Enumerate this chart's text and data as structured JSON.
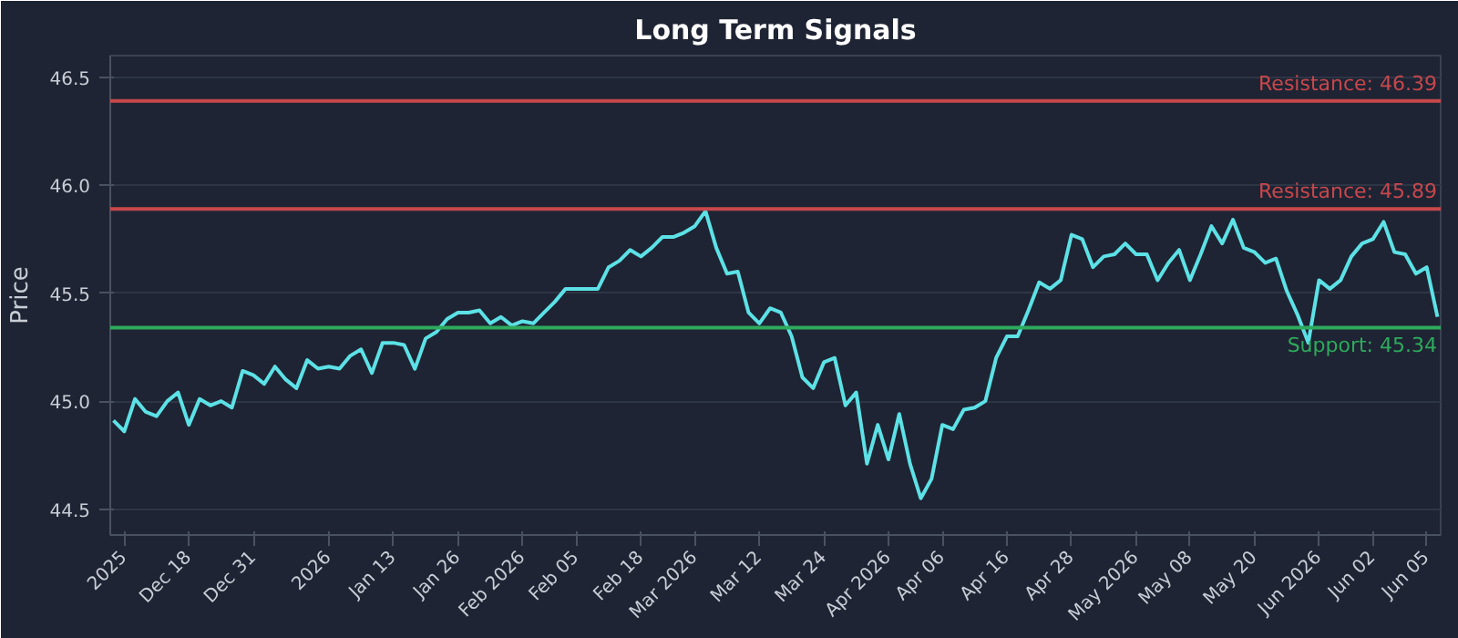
{
  "chart_data": {
    "type": "line",
    "title": "Long Term Signals",
    "ylabel": "Price",
    "categories": [
      null,
      "2025",
      null,
      null,
      null,
      null,
      null,
      "Dec 18",
      null,
      null,
      null,
      null,
      null,
      "Dec 31",
      null,
      null,
      null,
      null,
      null,
      null,
      "2026",
      null,
      null,
      null,
      null,
      null,
      "Jan 13",
      null,
      null,
      null,
      null,
      null,
      "Jan 26",
      null,
      null,
      null,
      null,
      null,
      "Feb 2026",
      null,
      null,
      null,
      null,
      "Feb 05",
      null,
      null,
      null,
      null,
      null,
      "Feb 18",
      null,
      null,
      null,
      null,
      "Mar 2026",
      null,
      null,
      null,
      null,
      null,
      "Mar 12",
      null,
      null,
      null,
      null,
      null,
      "Mar 24",
      null,
      null,
      null,
      null,
      null,
      "Apr 2026",
      null,
      null,
      null,
      null,
      "Apr 06",
      null,
      null,
      null,
      null,
      null,
      "Apr 16",
      null,
      null,
      null,
      null,
      null,
      "Apr 28",
      null,
      null,
      null,
      null,
      null,
      "May 2026",
      null,
      null,
      null,
      null,
      "May 08",
      null,
      null,
      null,
      null,
      null,
      "May 20",
      null,
      null,
      null,
      null,
      null,
      "Jun 2026",
      null,
      null,
      null,
      null,
      "Jun 02",
      null,
      null,
      null,
      null,
      "Jun 05",
      null
    ],
    "series": [
      {
        "color": "#5ce1e6",
        "values": [
          44.91,
          44.86,
          45.01,
          44.95,
          44.93,
          45.0,
          45.04,
          44.89,
          45.01,
          44.98,
          45.0,
          44.97,
          45.14,
          45.12,
          45.08,
          45.16,
          45.1,
          45.06,
          45.19,
          45.15,
          45.16,
          45.15,
          45.21,
          45.24,
          45.13,
          45.27,
          45.27,
          45.26,
          45.15,
          45.29,
          45.32,
          45.38,
          45.41,
          45.41,
          45.42,
          45.36,
          45.39,
          45.35,
          45.37,
          45.36,
          45.41,
          45.46,
          45.52,
          45.52,
          45.52,
          45.52,
          45.62,
          45.65,
          45.7,
          45.67,
          45.71,
          45.76,
          45.76,
          45.78,
          45.81,
          45.88,
          45.71,
          45.59,
          45.6,
          45.41,
          45.36,
          45.43,
          45.41,
          45.3,
          45.11,
          45.06,
          45.18,
          45.2,
          44.98,
          45.04,
          44.71,
          44.89,
          44.73,
          44.94,
          44.71,
          44.55,
          44.64,
          44.89,
          44.87,
          44.96,
          44.97,
          45.0,
          45.2,
          45.3,
          45.3,
          45.42,
          45.55,
          45.52,
          45.56,
          45.77,
          45.75,
          45.62,
          45.67,
          45.68,
          45.73,
          45.68,
          45.68,
          45.56,
          45.64,
          45.7,
          45.56,
          45.68,
          45.81,
          45.73,
          45.84,
          45.71,
          45.69,
          45.64,
          45.66,
          45.51,
          45.4,
          45.27,
          45.56,
          45.52,
          45.56,
          45.67,
          45.73,
          45.75,
          45.83,
          45.69,
          45.68,
          45.59,
          45.62,
          45.39
        ]
      }
    ],
    "ylim": [
      44.38,
      46.6
    ],
    "yticks": [
      {
        "value": 44.5,
        "label": "44.5"
      },
      {
        "value": 45,
        "label": "45.0"
      },
      {
        "value": 45.5,
        "label": "45.5"
      },
      {
        "value": 46,
        "label": "46.0"
      },
      {
        "value": 46.5,
        "label": "46.5"
      }
    ],
    "ref_lines": [
      {
        "axis": "y",
        "value": 46.39,
        "label": "Resistance: 46.39",
        "color": "#c8474c"
      },
      {
        "axis": "y",
        "value": 45.89,
        "label": "Resistance: 45.89",
        "color": "#c8474c"
      },
      {
        "axis": "y",
        "value": 45.34,
        "label": "Support: 45.34",
        "color": "#2eaa5c"
      }
    ],
    "grid": "y",
    "marker": "none",
    "line_style": "solid"
  }
}
